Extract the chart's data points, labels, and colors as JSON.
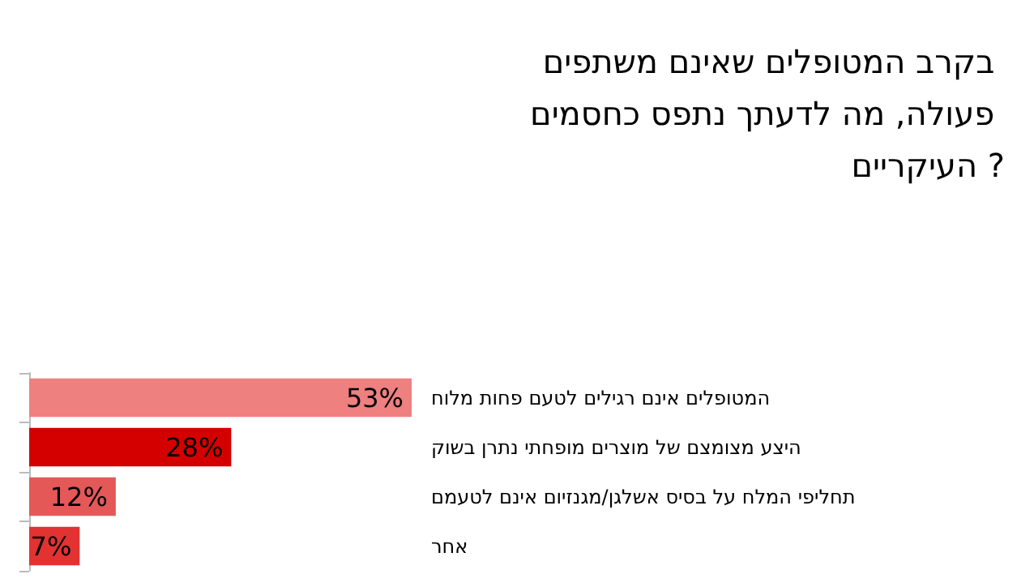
{
  "chart_data": {
    "type": "bar",
    "orientation": "horizontal",
    "title": "בקרב המטופלים שאינם משתפים פעולה, מה לדעתך נתפס כחסמים העיקריים ?",
    "categories": [
      "המטופלים אינם רגילים לטעם פחות מלוח",
      "היצע מצומצם של מוצרים מופחתי נתרן בשוק",
      "תחליפי המלח על בסיס אשלגן/מגנזיום אינם לטעמם",
      "אחר"
    ],
    "values": [
      53,
      28,
      12,
      7
    ],
    "value_labels": [
      "53%",
      "28%",
      "12%",
      "7%"
    ],
    "colors": [
      "#ee8080",
      "#d40000",
      "#e45858",
      "#e23232"
    ]
  }
}
